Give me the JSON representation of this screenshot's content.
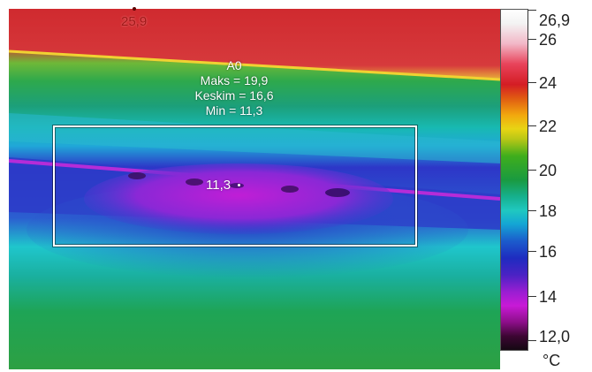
{
  "roi": {
    "name": "A0",
    "max_text": "Maks = 19,9",
    "avg_text": "Keskim = 16,6",
    "min_text": "Min = 11,3"
  },
  "spots": {
    "hot_label": "25,9",
    "cold_label": "11,3"
  },
  "scale": {
    "top_value": "26,9",
    "bottom_value": "12,0",
    "unit": "°C",
    "ticks": [
      "26",
      "24",
      "22",
      "20",
      "18",
      "16",
      "14"
    ]
  },
  "colors": {
    "hot": "#d8272d",
    "warm_band": "#3fb527",
    "cool_band": "#1dc6c8",
    "cold_band": "#2b35c6",
    "coldest": "#c51ed2"
  }
}
